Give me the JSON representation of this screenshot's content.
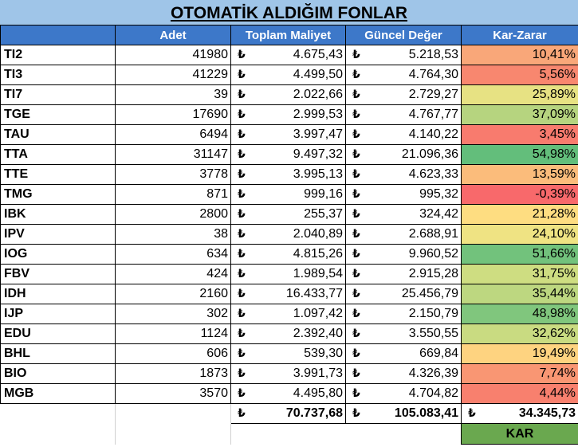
{
  "title": "OTOMATİK ALDIĞIM FONLAR",
  "currency_symbol": "₺",
  "headers": [
    "",
    "Adet",
    "Toplam Maliyet",
    "Güncel Değer",
    "Kar-Zarar"
  ],
  "rows": [
    {
      "name": "TI2",
      "adet": "41980",
      "maliyet": "4.675,43",
      "deger": "5.218,53",
      "kar": "10,41%",
      "color": "#f9a779"
    },
    {
      "name": "TI3",
      "adet": "41229",
      "maliyet": "4.499,50",
      "deger": "4.764,30",
      "kar": "5,56%",
      "color": "#f8876f"
    },
    {
      "name": "TI7",
      "adet": "39",
      "maliyet": "2.022,66",
      "deger": "2.729,27",
      "kar": "25,89%",
      "color": "#e7e283"
    },
    {
      "name": "TGE",
      "adet": "17690",
      "maliyet": "2.999,53",
      "deger": "4.767,77",
      "kar": "37,09%",
      "color": "#b6d47f"
    },
    {
      "name": "TAU",
      "adet": "6494",
      "maliyet": "3.997,47",
      "deger": "4.140,22",
      "kar": "3,45%",
      "color": "#f87b6e"
    },
    {
      "name": "TTA",
      "adet": "31147",
      "maliyet": "9.497,32",
      "deger": "21.096,36",
      "kar": "54,98%",
      "color": "#63be7b"
    },
    {
      "name": "TTE",
      "adet": "3778",
      "maliyet": "3.995,13",
      "deger": "4.623,33",
      "kar": "13,59%",
      "color": "#fbbc7b"
    },
    {
      "name": "TMG",
      "adet": "871",
      "maliyet": "999,16",
      "deger": "995,32",
      "kar": "-0,39%",
      "color": "#f8696b"
    },
    {
      "name": "IBK",
      "adet": "2800",
      "maliyet": "255,37",
      "deger": "324,42",
      "kar": "21,28%",
      "color": "#fedd81"
    },
    {
      "name": "IPV",
      "adet": "38",
      "maliyet": "2.040,89",
      "deger": "2.688,91",
      "kar": "24,10%",
      "color": "#efe383"
    },
    {
      "name": "IOG",
      "adet": "634",
      "maliyet": "4.815,26",
      "deger": "9.960,52",
      "kar": "51,66%",
      "color": "#72c27c"
    },
    {
      "name": "FBV",
      "adet": "424",
      "maliyet": "1.989,54",
      "deger": "2.915,28",
      "kar": "31,75%",
      "color": "#cedd81"
    },
    {
      "name": "IDH",
      "adet": "2160",
      "maliyet": "16.433,77",
      "deger": "25.456,79",
      "kar": "35,44%",
      "color": "#bdd780"
    },
    {
      "name": "IJP",
      "adet": "302",
      "maliyet": "1.097,42",
      "deger": "2.150,79",
      "kar": "48,98%",
      "color": "#80c67d"
    },
    {
      "name": "EDU",
      "adet": "1124",
      "maliyet": "2.392,40",
      "deger": "3.550,55",
      "kar": "32,62%",
      "color": "#c9db81"
    },
    {
      "name": "BHL",
      "adet": "606",
      "maliyet": "539,30",
      "deger": "669,84",
      "kar": "19,49%",
      "color": "#fed380"
    },
    {
      "name": "BIO",
      "adet": "1873",
      "maliyet": "3.991,73",
      "deger": "4.326,39",
      "kar": "7,74%",
      "color": "#f99673"
    },
    {
      "name": "MGB",
      "adet": "3570",
      "maliyet": "4.495,80",
      "deger": "4.704,82",
      "kar": "4,44%",
      "color": "#f8806e"
    }
  ],
  "totals": {
    "maliyet": "70.737,68",
    "deger": "105.083,41",
    "kar": "34.345,73"
  },
  "result_label": "KAR"
}
